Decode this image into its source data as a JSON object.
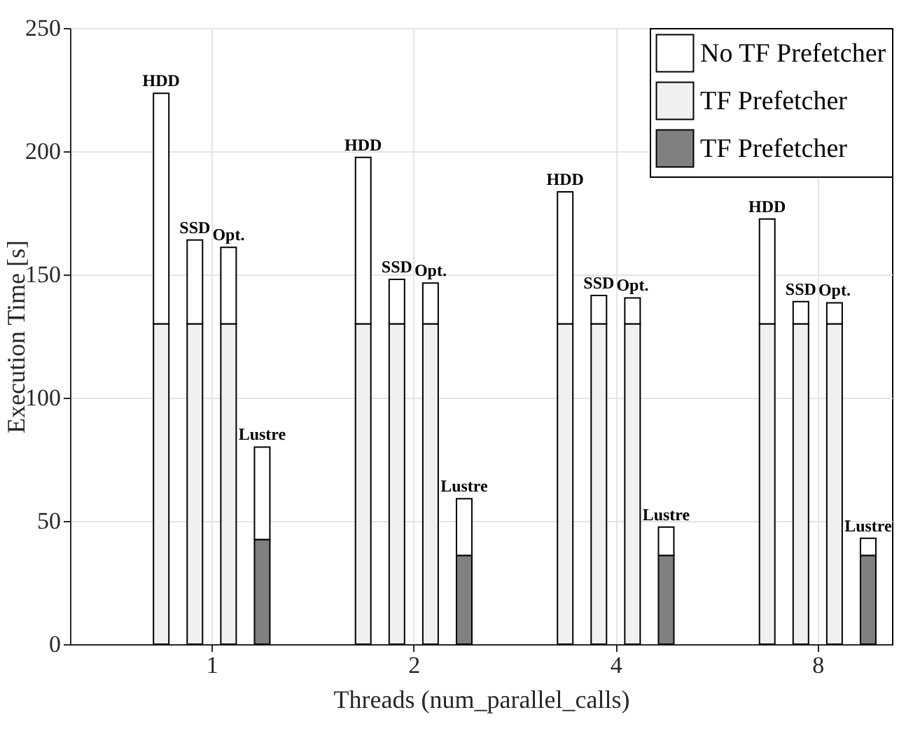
{
  "chart_data": {
    "type": "bar",
    "stacked": true,
    "xlabel": "Threads (num_parallel_calls)",
    "ylabel": "Execution Time [s]",
    "categories": [
      null,
      null,
      null,
      null,
      null,
      null,
      null,
      null,
      null,
      null,
      null,
      null,
      null,
      null,
      null,
      null,
      null,
      null,
      null,
      null,
      null,
      null,
      null,
      null
    ],
    "annotations": [
      "1",
      "2",
      "4",
      "8"
    ],
    "series": [
      {
        "name": "TF Prefetcher",
        "color": "#f0f0f0",
        "values": [
          null,
          null,
          130,
          130,
          130,
          null,
          null,
          null,
          130,
          130,
          130,
          null,
          null,
          null,
          130,
          130,
          130,
          null,
          null,
          null,
          130,
          130,
          130,
          null
        ]
      },
      {
        "name": "TF Prefetcher",
        "color": "#808080",
        "values": [
          null,
          null,
          null,
          null,
          null,
          42.5,
          null,
          null,
          null,
          null,
          null,
          36,
          null,
          null,
          null,
          null,
          null,
          36,
          null,
          null,
          null,
          null,
          null,
          36
        ]
      },
      {
        "name": "No TF Prefetcher",
        "color": "#ffffff",
        "values": [
          null,
          null,
          93.5,
          34,
          31,
          37.5,
          null,
          null,
          67.5,
          18,
          16.5,
          23,
          null,
          null,
          53.5,
          11.5,
          10.5,
          11.5,
          null,
          null,
          42.5,
          9,
          8.5,
          7
        ],
        "value_labels": [
          null,
          null,
          "HDD",
          "SSD",
          "Opt.",
          "Lustre",
          null,
          null,
          "HDD",
          "SSD",
          "Opt.",
          "Lustre",
          null,
          null,
          "HDD",
          "SSD",
          "Opt.",
          "Lustre",
          null,
          null,
          "HDD",
          "SSD",
          "Opt.",
          "Lustre"
        ]
      }
    ],
    "ylim": [
      0,
      250
    ],
    "yticks": [
      0,
      50,
      100,
      150,
      200,
      250
    ],
    "grid": true,
    "legend": "top right"
  }
}
